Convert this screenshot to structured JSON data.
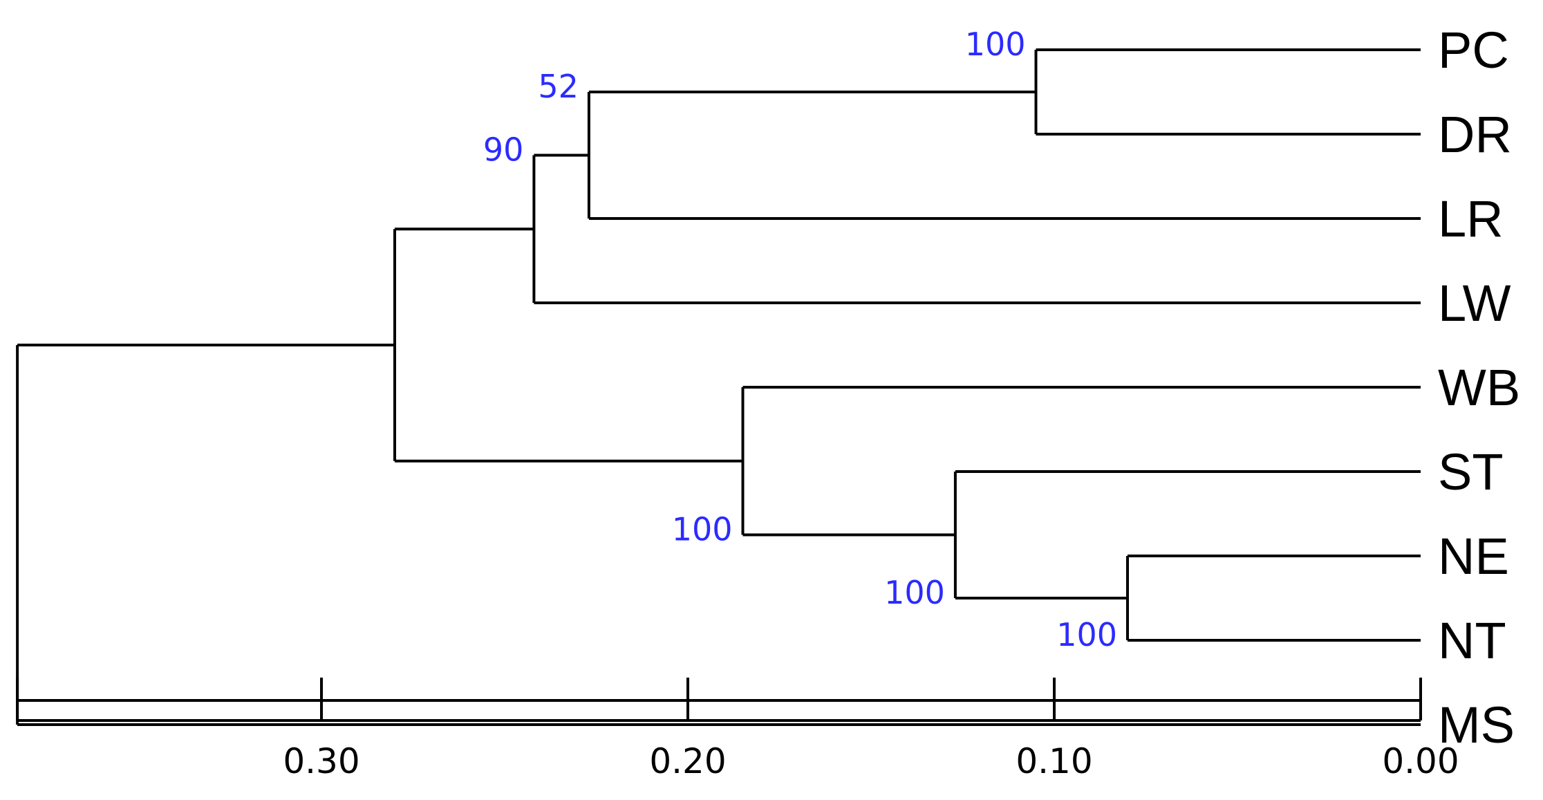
{
  "tree": {
    "leaves": [
      "PC",
      "DR",
      "LR",
      "LW",
      "WB",
      "ST",
      "NE",
      "NT",
      "MS"
    ],
    "nodes": [
      {
        "id": "n_pc_dr",
        "children": [
          "PC",
          "DR"
        ],
        "height": 0.105,
        "bootstrap": "100"
      },
      {
        "id": "n_lr",
        "children": [
          "n_pc_dr",
          "LR"
        ],
        "height": 0.227,
        "bootstrap": "52"
      },
      {
        "id": "n_lw",
        "children": [
          "n_lr",
          "LW"
        ],
        "height": 0.242,
        "bootstrap": "90"
      },
      {
        "id": "n_ne_nt",
        "children": [
          "NE",
          "NT"
        ],
        "height": 0.08,
        "bootstrap": "100"
      },
      {
        "id": "n_st",
        "children": [
          "ST",
          "n_ne_nt"
        ],
        "height": 0.127,
        "bootstrap": "100"
      },
      {
        "id": "n_wb",
        "children": [
          "WB",
          "n_st"
        ],
        "height": 0.185,
        "bootstrap": "100"
      },
      {
        "id": "n_top",
        "children": [
          "n_lw",
          "n_wb"
        ],
        "height": 0.28,
        "bootstrap": ""
      },
      {
        "id": "root",
        "children": [
          "n_top",
          "MS"
        ],
        "height": 0.383,
        "bootstrap": ""
      }
    ]
  },
  "axis": {
    "ticks": [
      {
        "value": 0.3,
        "label": "0.30"
      },
      {
        "value": 0.2,
        "label": "0.20"
      },
      {
        "value": 0.1,
        "label": "0.10"
      },
      {
        "value": 0.0,
        "label": "0.00"
      }
    ],
    "range": [
      0.0,
      0.383
    ]
  },
  "colors": {
    "branch": "#000000",
    "bootstrap": "#2b2bff",
    "label": "#000000"
  }
}
